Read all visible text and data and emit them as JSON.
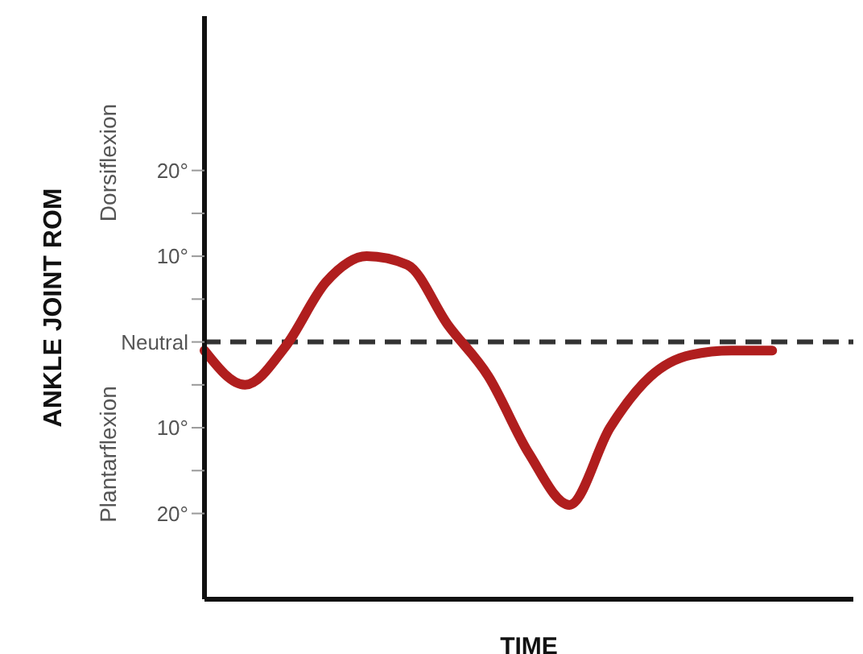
{
  "chart_data": {
    "type": "line",
    "xlabel": "TIME",
    "ylabel": "ANKLE JOINT ROM",
    "annotations": [
      "Dorsiflexion",
      "Plantarflexion"
    ],
    "categories": [
      null,
      null,
      null,
      null,
      null,
      null,
      null,
      null,
      null,
      null,
      null,
      null,
      null,
      null,
      null,
      null,
      null
    ],
    "series": [
      {
        "color": "#b01e1e",
        "values": [
          -1,
          -5,
          -0.5,
          7,
          10,
          9,
          2,
          -4,
          -13,
          -19,
          -10,
          -4,
          -1.5,
          -1,
          -1,
          null,
          null
        ]
      }
    ],
    "ylim": [
      -30,
      38
    ],
    "yticks": [
      {
        "value": -20,
        "label": "20°"
      },
      {
        "value": -15,
        "label": null
      },
      {
        "value": -10,
        "label": "10°"
      },
      {
        "value": -5,
        "label": null
      },
      {
        "value": 0,
        "label": "Neutral"
      },
      {
        "value": 5,
        "label": null
      },
      {
        "value": 10,
        "label": "10°"
      },
      {
        "value": 15,
        "label": null
      },
      {
        "value": 20,
        "label": "20°"
      }
    ],
    "ref_lines": [
      {
        "axis": "y",
        "value": 0,
        "color": "#333333",
        "line_style": "dashed"
      }
    ],
    "tick_labels": "y",
    "marker": "none",
    "line_style": "solid"
  }
}
